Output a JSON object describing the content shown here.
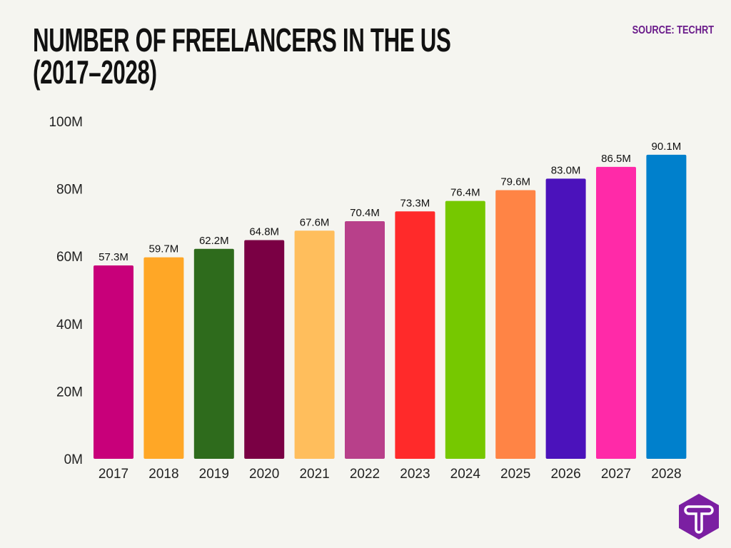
{
  "header": {
    "title_line1": "NUMBER OF FREELANCERS IN THE US",
    "title_line2": "(2017–2028)",
    "source": "SOURCE: TECHRT"
  },
  "logo": {
    "letter": "T",
    "color": "#7b1fa2"
  },
  "chart_data": {
    "type": "bar",
    "title": "NUMBER OF FREELANCERS IN THE US (2017–2028)",
    "categories": [
      "2017",
      "2018",
      "2019",
      "2020",
      "2021",
      "2022",
      "2023",
      "2024",
      "2025",
      "2026",
      "2027",
      "2028"
    ],
    "values": [
      57.3,
      59.7,
      62.2,
      64.8,
      67.6,
      70.4,
      73.3,
      76.4,
      79.6,
      83.0,
      86.5,
      90.1
    ],
    "data_labels": [
      "57.3M",
      "59.7M",
      "62.2M",
      "64.8M",
      "67.6M",
      "70.4M",
      "73.3M",
      "76.4M",
      "79.6M",
      "83.0M",
      "86.5M",
      "90.1M"
    ],
    "colors": [
      "#c8007a",
      "#ffa726",
      "#2e6b1c",
      "#7a0044",
      "#ffbe5c",
      "#b8408a",
      "#ff2a2a",
      "#76c800",
      "#ff8445",
      "#4b12bb",
      "#ff2aa8",
      "#0080cc"
    ],
    "yticks": [
      "0M",
      "20M",
      "40M",
      "60M",
      "80M",
      "100M"
    ],
    "ytick_values": [
      0,
      20,
      40,
      60,
      80,
      100
    ],
    "ylim": [
      0,
      100
    ],
    "unit": "M",
    "grid": false,
    "legend": "none",
    "xlabel": "",
    "ylabel": ""
  }
}
